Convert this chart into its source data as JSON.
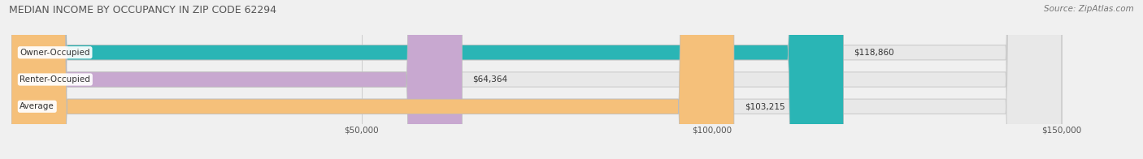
{
  "title": "MEDIAN INCOME BY OCCUPANCY IN ZIP CODE 62294",
  "source": "Source: ZipAtlas.com",
  "categories": [
    "Owner-Occupied",
    "Renter-Occupied",
    "Average"
  ],
  "values": [
    118860,
    64364,
    103215
  ],
  "bar_colors": [
    "#2ab5b5",
    "#c8a8d0",
    "#f5c07a"
  ],
  "label_values": [
    "$118,860",
    "$64,364",
    "$103,215"
  ],
  "xlim": [
    0,
    160000
  ],
  "xticks": [
    50000,
    100000,
    150000
  ],
  "xtick_labels": [
    "$50,000",
    "$100,000",
    "$150,000"
  ],
  "background_color": "#f0f0f0",
  "bar_bg_color": "#e8e8e8",
  "bar_height": 0.55,
  "figsize": [
    14.06,
    1.96
  ],
  "dpi": 100
}
